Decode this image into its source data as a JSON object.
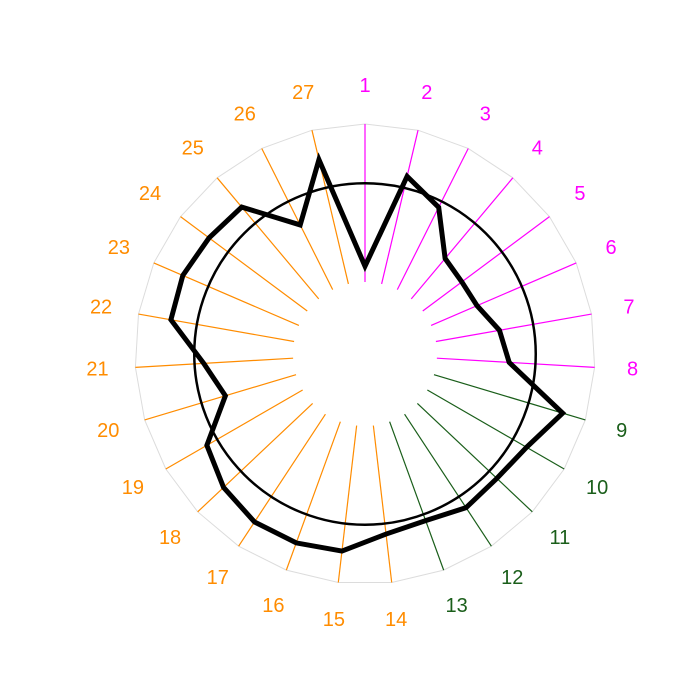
{
  "chart_data": {
    "type": "radar",
    "categories": [
      "1",
      "2",
      "3",
      "4",
      "5",
      "6",
      "7",
      "8",
      "9",
      "10",
      "11",
      "12",
      "13",
      "14",
      "15",
      "16",
      "17",
      "18",
      "19",
      "20",
      "21",
      "22",
      "23",
      "24",
      "25",
      "26",
      "27"
    ],
    "groups": [
      {
        "color": "#ff00ff",
        "members": [
          "1",
          "2",
          "3",
          "4",
          "5",
          "6",
          "7",
          "8"
        ]
      },
      {
        "color": "#1a5e1a",
        "members": [
          "9",
          "10",
          "11",
          "12",
          "13"
        ]
      },
      {
        "color": "#ff8c00",
        "members": [
          "14",
          "15",
          "16",
          "17",
          "18",
          "19",
          "20",
          "21",
          "22",
          "23",
          "24",
          "25",
          "26",
          "27"
        ]
      }
    ],
    "values": [
      0.12,
      0.84,
      0.7,
      0.4,
      0.37,
      0.38,
      0.49,
      0.55,
      1.02,
      0.87,
      0.83,
      0.85,
      0.8,
      0.83,
      0.96,
      0.98,
      0.98,
      0.93,
      0.84,
      0.56,
      0.68,
      0.95,
      0.96,
      0.93,
      0.91,
      0.55,
      0.97
    ],
    "reference_value": 0.75,
    "rlim": [
      0,
      1.2
    ],
    "grid": true,
    "legend": "none"
  }
}
